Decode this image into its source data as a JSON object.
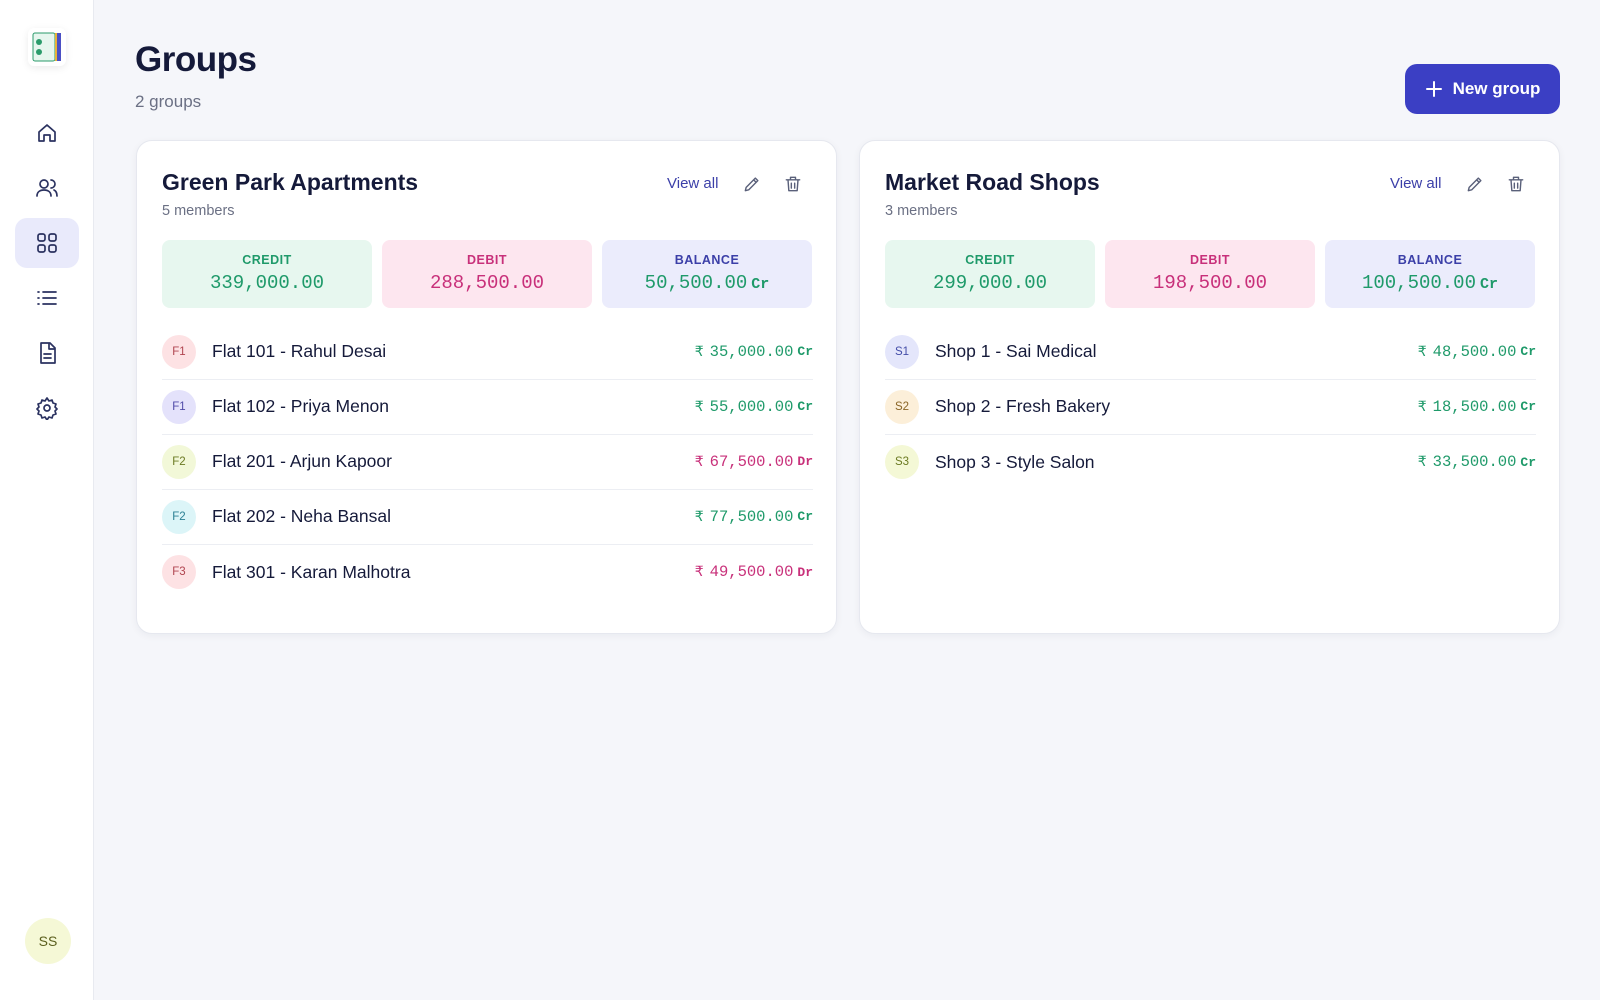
{
  "sidebar": {
    "avatar": "SS"
  },
  "header": {
    "title": "Groups",
    "subtitle": "2 groups",
    "button": "New group"
  },
  "groups": [
    {
      "name": "Green Park Apartments",
      "members": "5 members",
      "view_all": "View all",
      "summary": {
        "credit_label": "CREDIT",
        "credit": "339,000.00",
        "debit_label": "DEBIT",
        "debit": "288,500.00",
        "balance_label": "BALANCE",
        "balance": "50,500.00",
        "balance_type": "Cr"
      },
      "items": [
        {
          "initials": "F1",
          "name": "Flat 101 - Rahul Desai",
          "currency": "₹",
          "amount": "35,000.00",
          "type": "Cr"
        },
        {
          "initials": "F1",
          "name": "Flat 102 - Priya Menon",
          "currency": "₹",
          "amount": "55,000.00",
          "type": "Cr"
        },
        {
          "initials": "F2",
          "name": "Flat 201 - Arjun Kapoor",
          "currency": "₹",
          "amount": "67,500.00",
          "type": "Dr"
        },
        {
          "initials": "F2",
          "name": "Flat 202 - Neha Bansal",
          "currency": "₹",
          "amount": "77,500.00",
          "type": "Cr"
        },
        {
          "initials": "F3",
          "name": "Flat 301 - Karan Malhotra",
          "currency": "₹",
          "amount": "49,500.00",
          "type": "Dr"
        }
      ]
    },
    {
      "name": "Market Road Shops",
      "members": "3 members",
      "view_all": "View all",
      "summary": {
        "credit_label": "CREDIT",
        "credit": "299,000.00",
        "debit_label": "DEBIT",
        "debit": "198,500.00",
        "balance_label": "BALANCE",
        "balance": "100,500.00",
        "balance_type": "Cr"
      },
      "items": [
        {
          "initials": "S1",
          "name": "Shop 1 - Sai Medical",
          "currency": "₹",
          "amount": "48,500.00",
          "type": "Cr"
        },
        {
          "initials": "S2",
          "name": "Shop 2 - Fresh Bakery",
          "currency": "₹",
          "amount": "18,500.00",
          "type": "Cr"
        },
        {
          "initials": "S3",
          "name": "Shop 3 - Style Salon",
          "currency": "₹",
          "amount": "33,500.00",
          "type": "Cr"
        }
      ]
    }
  ]
}
